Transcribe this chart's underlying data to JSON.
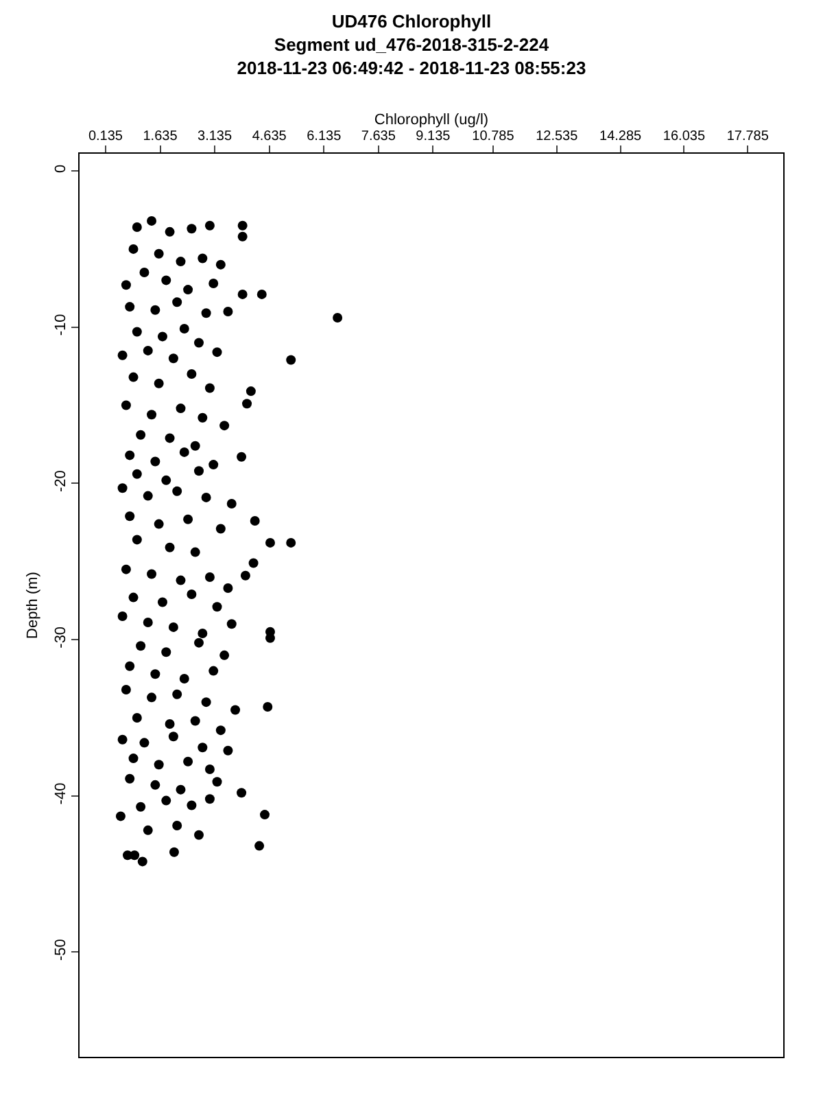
{
  "chart_data": {
    "type": "scatter",
    "title": "UD476 Chlorophyll",
    "subtitle": "Segment ud_476-2018-315-2-224",
    "annotations": [
      "2018-11-23 06:49:42 - 2018-11-23 08:55:23"
    ],
    "xlabel": "Chlorophyll (ug/l)",
    "ylabel": "Depth (m)",
    "marker": "circle",
    "grid": false,
    "xlim": [
      -0.58,
      18.76
    ],
    "xticks": [
      0.135,
      1.635,
      3.135,
      4.635,
      6.135,
      7.635,
      9.135,
      10.785,
      12.535,
      14.285,
      16.035,
      17.785
    ],
    "ylim": [
      -56.7,
      1.1
    ],
    "yticks": [
      0,
      -10,
      -20,
      -30,
      -40,
      -50
    ],
    "series": [
      {
        "color": "#000000",
        "x": [
          1.4,
          1.0,
          1.9,
          2.5,
          3.0,
          3.9,
          3.9,
          0.9,
          1.6,
          2.2,
          2.8,
          3.3,
          1.2,
          0.7,
          1.8,
          2.4,
          3.1,
          4.43,
          3.9,
          0.8,
          1.5,
          2.1,
          2.9,
          3.5,
          6.51,
          1.0,
          1.7,
          2.3,
          2.7,
          0.6,
          1.3,
          2.0,
          3.2,
          5.23,
          0.9,
          1.6,
          2.5,
          3.0,
          4.13,
          4.02,
          0.7,
          1.4,
          2.2,
          2.8,
          3.4,
          1.1,
          1.9,
          2.6,
          0.8,
          1.5,
          2.3,
          3.1,
          3.87,
          1.0,
          1.8,
          2.7,
          0.6,
          1.3,
          2.1,
          2.9,
          3.6,
          4.24,
          0.8,
          1.6,
          2.4,
          3.3,
          4.66,
          5.23,
          1.0,
          1.9,
          2.6,
          4.2,
          3.98,
          0.7,
          1.4,
          2.2,
          3.0,
          3.5,
          0.9,
          1.7,
          2.5,
          3.2,
          4.66,
          4.66,
          0.6,
          1.3,
          2.0,
          2.8,
          3.6,
          1.1,
          1.8,
          2.7,
          3.4,
          0.8,
          1.5,
          2.3,
          3.1,
          4.59,
          0.7,
          1.4,
          2.1,
          2.9,
          3.7,
          1.0,
          1.9,
          2.6,
          3.3,
          0.6,
          1.2,
          2.0,
          2.8,
          3.5,
          0.9,
          1.6,
          2.4,
          3.0,
          3.87,
          0.8,
          1.5,
          2.2,
          3.2,
          4.51,
          0.55,
          1.1,
          1.8,
          2.5,
          3.0,
          0.74,
          1.15,
          2.02,
          0.93,
          4.36,
          1.3,
          2.1,
          2.7
        ],
        "values": [
          -3.2,
          -3.6,
          -3.9,
          -3.7,
          -3.5,
          -3.5,
          -4.2,
          -5.0,
          -5.3,
          -5.8,
          -5.6,
          -6.0,
          -6.5,
          -7.3,
          -7.0,
          -7.6,
          -7.2,
          -7.9,
          -7.9,
          -8.7,
          -8.9,
          -8.4,
          -9.1,
          -9.0,
          -9.4,
          -10.3,
          -10.6,
          -10.1,
          -11.0,
          -11.8,
          -11.5,
          -12.0,
          -11.6,
          -12.1,
          -13.2,
          -13.6,
          -13.0,
          -13.9,
          -14.1,
          -14.9,
          -15.0,
          -15.6,
          -15.2,
          -15.8,
          -16.3,
          -16.9,
          -17.1,
          -17.6,
          -18.2,
          -18.6,
          -18.0,
          -18.8,
          -18.3,
          -19.4,
          -19.8,
          -19.2,
          -20.3,
          -20.8,
          -20.5,
          -20.9,
          -21.3,
          -22.4,
          -22.1,
          -22.6,
          -22.3,
          -22.9,
          -23.8,
          -23.8,
          -23.6,
          -24.1,
          -24.4,
          -25.1,
          -25.9,
          -25.5,
          -25.8,
          -26.2,
          -26.0,
          -26.7,
          -27.3,
          -27.6,
          -27.1,
          -27.9,
          -29.5,
          -29.9,
          -28.5,
          -28.9,
          -29.2,
          -29.6,
          -29.0,
          -30.4,
          -30.8,
          -30.2,
          -31.0,
          -31.7,
          -32.2,
          -32.5,
          -32.0,
          -34.3,
          -33.2,
          -33.7,
          -33.5,
          -34.0,
          -34.5,
          -35.0,
          -35.4,
          -35.2,
          -35.8,
          -36.4,
          -36.6,
          -36.2,
          -36.9,
          -37.1,
          -37.6,
          -38.0,
          -37.8,
          -38.3,
          -39.8,
          -38.9,
          -39.3,
          -39.6,
          -39.1,
          -41.2,
          -41.3,
          -40.7,
          -40.3,
          -40.6,
          -40.2,
          -43.8,
          -44.2,
          -43.6,
          -43.8,
          -43.2,
          -42.2,
          -41.9,
          -42.5
        ]
      }
    ]
  }
}
